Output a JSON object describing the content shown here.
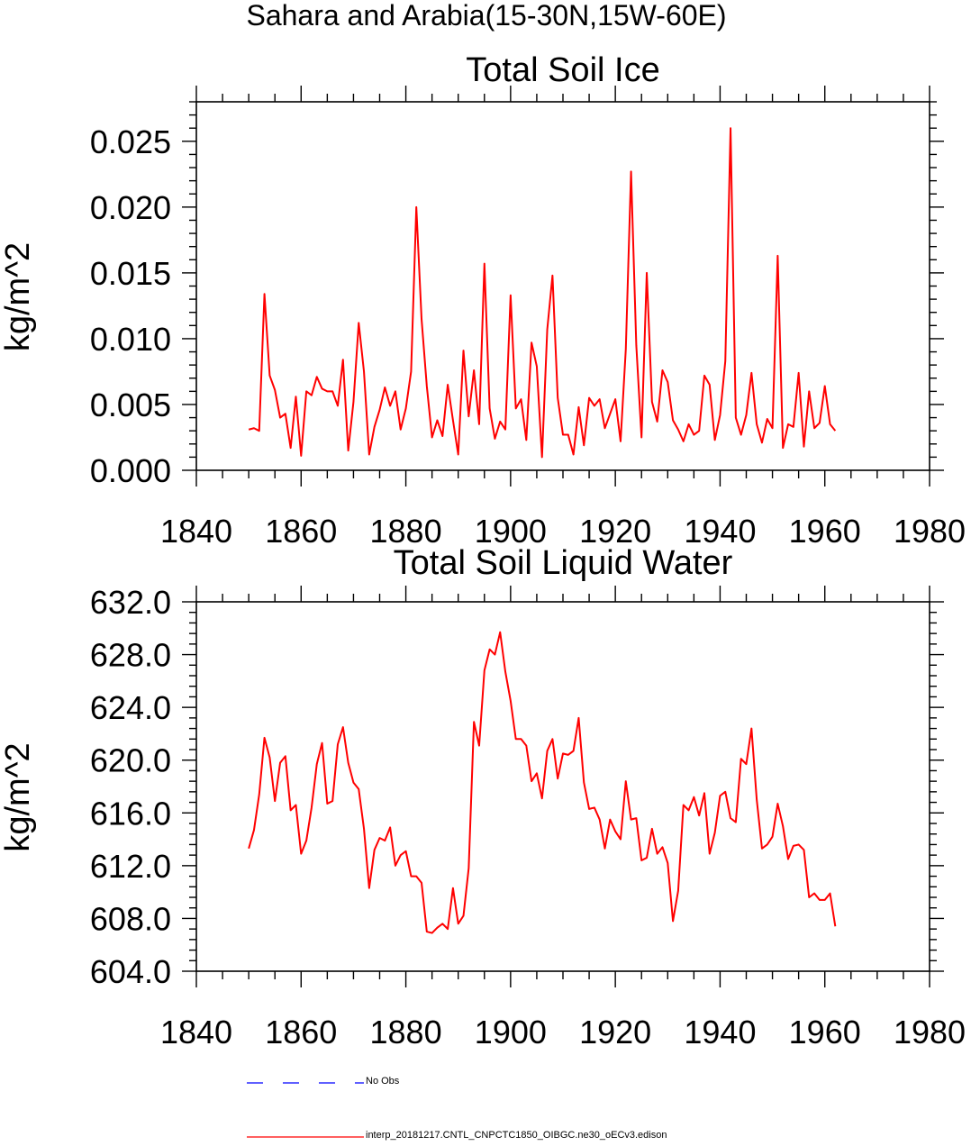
{
  "suptitle": "Sahara and Arabia(15-30N,15W-60E)",
  "chart_data": [
    {
      "type": "line",
      "title": "Total Soil Ice",
      "xlabel": "",
      "ylabel": "kg/m^2",
      "xlim": [
        1840,
        1980
      ],
      "ylim": [
        0.0,
        0.028
      ],
      "xticks": [
        1840,
        1860,
        1880,
        1900,
        1920,
        1940,
        1960,
        1980
      ],
      "xtick_labels": [
        "1840",
        "1860",
        "1880",
        "1900",
        "1920",
        "1940",
        "1960",
        "1980"
      ],
      "yticks": [
        0.0,
        0.005,
        0.01,
        0.015,
        0.02,
        0.025
      ],
      "ytick_labels": [
        "0.000",
        "0.005",
        "0.010",
        "0.015",
        "0.020",
        "0.025"
      ],
      "grid": false,
      "series": [
        {
          "name": "interp_20181217.CNTL_CNPCTC1850_OIBGC.ne30_oECv3.edison",
          "color": "#ff0000",
          "x": [
            1850,
            1851,
            1852,
            1853,
            1854,
            1855,
            1856,
            1857,
            1858,
            1859,
            1860,
            1861,
            1862,
            1863,
            1864,
            1865,
            1866,
            1867,
            1868,
            1869,
            1870,
            1871,
            1872,
            1873,
            1874,
            1875,
            1876,
            1877,
            1878,
            1879,
            1880,
            1881,
            1882,
            1883,
            1884,
            1885,
            1886,
            1887,
            1888,
            1889,
            1890,
            1891,
            1892,
            1893,
            1894,
            1895,
            1896,
            1897,
            1898,
            1899,
            1900,
            1901,
            1902,
            1903,
            1904,
            1905,
            1906,
            1907,
            1908,
            1909,
            1910,
            1911,
            1912,
            1913,
            1914,
            1915,
            1916,
            1917,
            1918,
            1919,
            1920,
            1921,
            1922,
            1923,
            1924,
            1925,
            1926,
            1927,
            1928,
            1929,
            1930,
            1931,
            1932,
            1933,
            1934,
            1935,
            1936,
            1937,
            1938,
            1939,
            1940,
            1941,
            1942,
            1943,
            1944,
            1945,
            1946,
            1947,
            1948,
            1949,
            1950,
            1951,
            1952,
            1953,
            1954,
            1955,
            1956,
            1957,
            1958,
            1959,
            1960,
            1961,
            1962
          ],
          "y": [
            0.0031,
            0.0032,
            0.003,
            0.0134,
            0.0072,
            0.0061,
            0.004,
            0.0043,
            0.0017,
            0.0056,
            0.0011,
            0.006,
            0.0057,
            0.0071,
            0.0062,
            0.006,
            0.006,
            0.0049,
            0.0084,
            0.0015,
            0.0052,
            0.0112,
            0.0075,
            0.0012,
            0.0033,
            0.0046,
            0.0063,
            0.0049,
            0.006,
            0.0031,
            0.0047,
            0.0075,
            0.02,
            0.0115,
            0.0064,
            0.0025,
            0.0038,
            0.0026,
            0.0065,
            0.0038,
            0.0012,
            0.0091,
            0.0041,
            0.0076,
            0.0035,
            0.0157,
            0.0047,
            0.0024,
            0.0037,
            0.0031,
            0.0133,
            0.0047,
            0.0054,
            0.0023,
            0.0097,
            0.0079,
            0.001,
            0.0107,
            0.0148,
            0.0055,
            0.0027,
            0.0027,
            0.0012,
            0.0048,
            0.0019,
            0.0055,
            0.0049,
            0.0054,
            0.0032,
            0.0043,
            0.0054,
            0.0022,
            0.0092,
            0.0227,
            0.0095,
            0.0025,
            0.015,
            0.0052,
            0.0037,
            0.0076,
            0.0067,
            0.0038,
            0.0031,
            0.0022,
            0.0035,
            0.0027,
            0.003,
            0.0072,
            0.0065,
            0.0023,
            0.0042,
            0.0083,
            0.026,
            0.004,
            0.0027,
            0.0042,
            0.0074,
            0.0035,
            0.0021,
            0.0039,
            0.0032,
            0.0163,
            0.0017,
            0.0035,
            0.0033,
            0.0074,
            0.0018,
            0.006,
            0.0032,
            0.0036,
            0.0064,
            0.0035,
            0.003
          ]
        }
      ]
    },
    {
      "type": "line",
      "title": "Total Soil Liquid Water",
      "xlabel": "",
      "ylabel": "kg/m^2",
      "xlim": [
        1840,
        1980
      ],
      "ylim": [
        604.0,
        632.0
      ],
      "xticks": [
        1840,
        1860,
        1880,
        1900,
        1920,
        1940,
        1960,
        1980
      ],
      "xtick_labels": [
        "1840",
        "1860",
        "1880",
        "1900",
        "1920",
        "1940",
        "1960",
        "1980"
      ],
      "yticks": [
        604.0,
        608.0,
        612.0,
        616.0,
        620.0,
        624.0,
        628.0,
        632.0
      ],
      "ytick_labels": [
        "604.0",
        "608.0",
        "612.0",
        "616.0",
        "620.0",
        "624.0",
        "628.0",
        "632.0"
      ],
      "grid": false,
      "series": [
        {
          "name": "interp_20181217.CNTL_CNPCTC1850_OIBGC.ne30_oECv3.edison",
          "color": "#ff0000",
          "x": [
            1850,
            1851,
            1852,
            1853,
            1854,
            1855,
            1856,
            1857,
            1858,
            1859,
            1860,
            1861,
            1862,
            1863,
            1864,
            1865,
            1866,
            1867,
            1868,
            1869,
            1870,
            1871,
            1872,
            1873,
            1874,
            1875,
            1876,
            1877,
            1878,
            1879,
            1880,
            1881,
            1882,
            1883,
            1884,
            1885,
            1886,
            1887,
            1888,
            1889,
            1890,
            1891,
            1892,
            1893,
            1894,
            1895,
            1896,
            1897,
            1898,
            1899,
            1900,
            1901,
            1902,
            1903,
            1904,
            1905,
            1906,
            1907,
            1908,
            1909,
            1910,
            1911,
            1912,
            1913,
            1914,
            1915,
            1916,
            1917,
            1918,
            1919,
            1920,
            1921,
            1922,
            1923,
            1924,
            1925,
            1926,
            1927,
            1928,
            1929,
            1930,
            1931,
            1932,
            1933,
            1934,
            1935,
            1936,
            1937,
            1938,
            1939,
            1940,
            1941,
            1942,
            1943,
            1944,
            1945,
            1946,
            1947,
            1948,
            1949,
            1950,
            1951,
            1952,
            1953,
            1954,
            1955,
            1956,
            1957,
            1958,
            1959,
            1960,
            1961,
            1962
          ],
          "y": [
            613.3,
            614.7,
            617.4,
            621.7,
            620.2,
            616.9,
            619.8,
            620.3,
            616.2,
            616.6,
            612.9,
            613.9,
            616.4,
            619.7,
            621.3,
            616.7,
            616.9,
            621.2,
            622.5,
            619.8,
            618.3,
            617.8,
            614.8,
            610.3,
            613.2,
            614.1,
            613.9,
            614.9,
            612.0,
            612.8,
            613.1,
            611.2,
            611.2,
            610.7,
            607.0,
            606.9,
            607.3,
            607.6,
            607.2,
            610.3,
            607.6,
            608.2,
            611.8,
            622.9,
            621.1,
            626.8,
            628.4,
            628.0,
            629.7,
            626.7,
            624.5,
            621.6,
            621.6,
            621.1,
            618.4,
            619.0,
            617.1,
            620.7,
            621.6,
            618.6,
            620.5,
            620.4,
            620.7,
            623.2,
            618.3,
            616.3,
            616.4,
            615.5,
            613.3,
            615.5,
            614.6,
            614.0,
            618.4,
            615.5,
            615.6,
            612.4,
            612.6,
            614.8,
            612.9,
            613.4,
            612.2,
            607.8,
            610.1,
            616.6,
            616.2,
            617.2,
            615.8,
            617.5,
            612.9,
            614.5,
            617.3,
            617.6,
            615.6,
            615.3,
            620.1,
            619.7,
            622.4,
            617.0,
            613.3,
            613.6,
            614.2,
            616.7,
            615.0,
            612.5,
            613.5,
            613.6,
            613.2,
            609.6,
            609.9,
            609.4,
            609.4,
            609.9,
            607.4
          ]
        }
      ]
    }
  ],
  "legend": {
    "entries": [
      {
        "label": "No Obs",
        "color": "#0000ff",
        "style": "dashed"
      },
      {
        "label": "interp_20181217.CNTL_CNPCTC1850_OIBGC.ne30_oECv3.edison",
        "color": "#ff0000",
        "style": "solid"
      }
    ]
  }
}
